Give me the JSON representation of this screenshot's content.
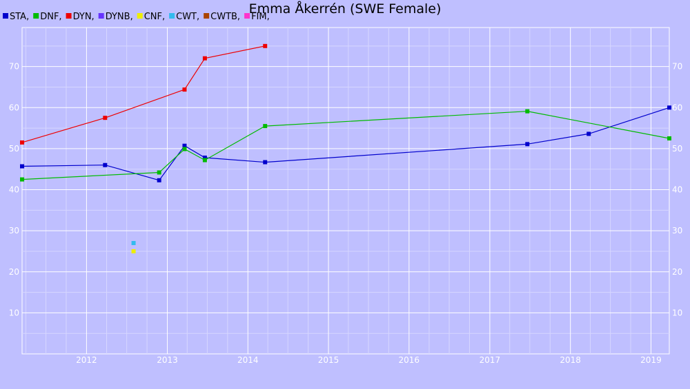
{
  "chart_data": {
    "type": "line",
    "title": "Emma Åkerrén (SWE Female)",
    "xlabel": "",
    "ylabel": "",
    "x_ticks": [
      "2012",
      "2013",
      "2014",
      "2015",
      "2016",
      "2017",
      "2018",
      "2019"
    ],
    "y_ticks": [
      10,
      20,
      30,
      40,
      50,
      60,
      70
    ],
    "xlim": [
      "2011-03-15",
      "2019-03-25"
    ],
    "ylim": [
      0,
      79.5
    ],
    "grid": true,
    "legend_position": "top-left",
    "series": [
      {
        "name": "STA,",
        "color": "#0000cc",
        "x": [
          "2011-03-15",
          "2012-03-25",
          "2012-11-25",
          "2013-03-20",
          "2013-06-20",
          "2014-03-20",
          "2017-06-20",
          "2018-03-25",
          "2019-03-25"
        ],
        "y": [
          45.7,
          46.0,
          42.3,
          50.7,
          47.8,
          46.7,
          51.1,
          53.6,
          60.0
        ]
      },
      {
        "name": "DNF,",
        "color": "#00bb00",
        "x": [
          "2011-03-15",
          "2012-11-25",
          "2013-03-20",
          "2013-06-20",
          "2014-03-20",
          "2017-06-20",
          "2019-03-25"
        ],
        "y": [
          42.5,
          44.2,
          49.9,
          47.2,
          55.5,
          59.1,
          52.5
        ]
      },
      {
        "name": "DYN,",
        "color": "#ee0000",
        "x": [
          "2011-03-15",
          "2012-03-25",
          "2013-03-20",
          "2013-06-20",
          "2014-03-20"
        ],
        "y": [
          51.5,
          57.5,
          64.4,
          72.0,
          75.0
        ]
      },
      {
        "name": "DYNB,",
        "color": "#6633ff",
        "x": [],
        "y": []
      },
      {
        "name": "CNF,",
        "color": "#eeee00",
        "x": [
          "2012-08-01"
        ],
        "y": [
          25
        ]
      },
      {
        "name": "CWT,",
        "color": "#33bbee",
        "x": [
          "2012-08-01"
        ],
        "y": [
          27
        ]
      },
      {
        "name": "CWTB,",
        "color": "#aa4400",
        "x": [],
        "y": []
      },
      {
        "name": "FIM,",
        "color": "#ff33cc",
        "x": [],
        "y": []
      }
    ]
  }
}
